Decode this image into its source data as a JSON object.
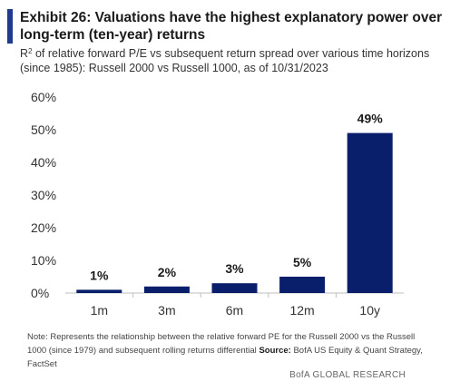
{
  "title": "Exhibit 26: Valuations have the highest explanatory power over long-term (ten-year) returns",
  "subtitle_r": "R",
  "subtitle_sup": "2",
  "subtitle_rest": " of relative forward P/E vs subsequent return spread over various time horizons (since 1985): Russell 2000 vs Russell 1000, as of 10/31/2023",
  "note_text": "Note: Represents the relationship between the relative forward PE for the Russell 2000 vs the Russell 1000 (since 1979) and subsequent rolling returns differential ",
  "source_label": "Source:",
  "source_text": " BofA US Equity & Quant Strategy, FactSet",
  "footer": "BofA GLOBAL RESEARCH",
  "colors": {
    "bar": "#0a1f6b",
    "accent": "#1f3a8f",
    "axis": "#bfbfbf"
  },
  "chart_data": {
    "type": "bar",
    "categories": [
      "1m",
      "3m",
      "6m",
      "12m",
      "10y"
    ],
    "values": [
      1,
      2,
      3,
      5,
      49
    ],
    "data_labels": [
      "1%",
      "2%",
      "3%",
      "5%",
      "49%"
    ],
    "yticks": [
      0,
      10,
      20,
      30,
      40,
      50,
      60
    ],
    "ytick_labels": [
      "0%",
      "10%",
      "20%",
      "30%",
      "40%",
      "50%",
      "60%"
    ],
    "ylim": [
      0,
      60
    ],
    "grid": false
  }
}
